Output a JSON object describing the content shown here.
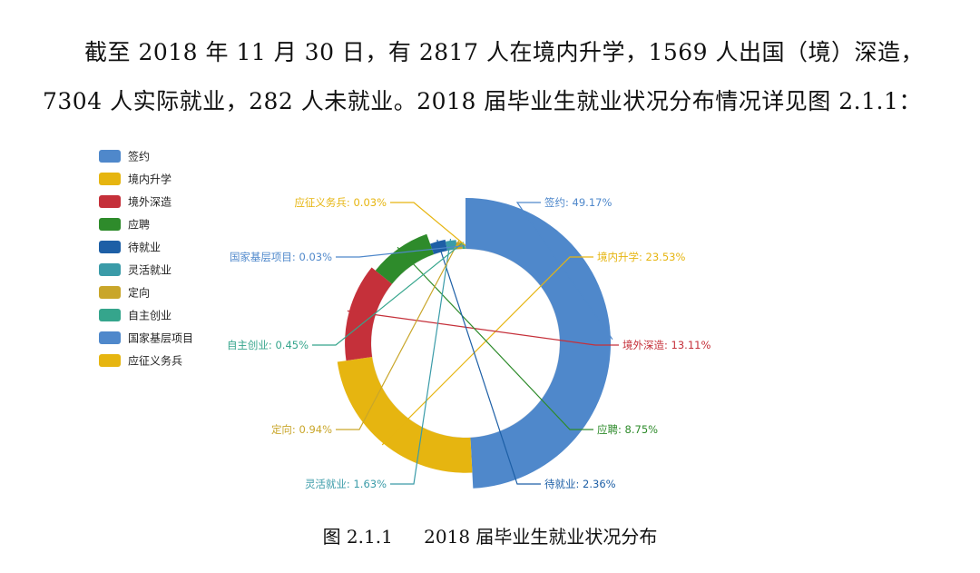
{
  "text": {
    "line1": "截至 2018 年 11 月 30 日，有 2817 人在境内升学，1569 人出国（境）深造，",
    "line2": "7304 人实际就业，282 人未就业。2018 届毕业生就业状况分布情况详见图 2.1.1："
  },
  "caption": {
    "label": "图 2.1.1",
    "title": "2018 届毕业生就业状况分布"
  },
  "chart_data": {
    "type": "pie",
    "variant": "rose-donut",
    "title": "",
    "legend_position": "top-left",
    "series": [
      {
        "name": "签约",
        "value": 49.17,
        "label": "签约: 49.17%",
        "color": "#4f88cb"
      },
      {
        "name": "境内升学",
        "value": 23.53,
        "label": "境内升学: 23.53%",
        "color": "#e6b510"
      },
      {
        "name": "境外深造",
        "value": 13.11,
        "label": "境外深造: 13.11%",
        "color": "#c5303a"
      },
      {
        "name": "应聘",
        "value": 8.75,
        "label": "应聘: 8.75%",
        "color": "#2e8b2b"
      },
      {
        "name": "待就业",
        "value": 2.36,
        "label": "待就业: 2.36%",
        "color": "#1d5fa6"
      },
      {
        "name": "灵活就业",
        "value": 1.63,
        "label": "灵活就业: 1.63%",
        "color": "#3a9ba8"
      },
      {
        "name": "定向",
        "value": 0.94,
        "label": "定向: 0.94%",
        "color": "#c9a62a"
      },
      {
        "name": "自主创业",
        "value": 0.45,
        "label": "自主创业: 0.45%",
        "color": "#35a58c"
      },
      {
        "name": "国家基层项目",
        "value": 0.03,
        "label": "国家基层项目: 0.03%",
        "color": "#4f88cb"
      },
      {
        "name": "应征义务兵",
        "value": 0.03,
        "label": "应征义务兵: 0.03%",
        "color": "#e6b510"
      }
    ]
  }
}
